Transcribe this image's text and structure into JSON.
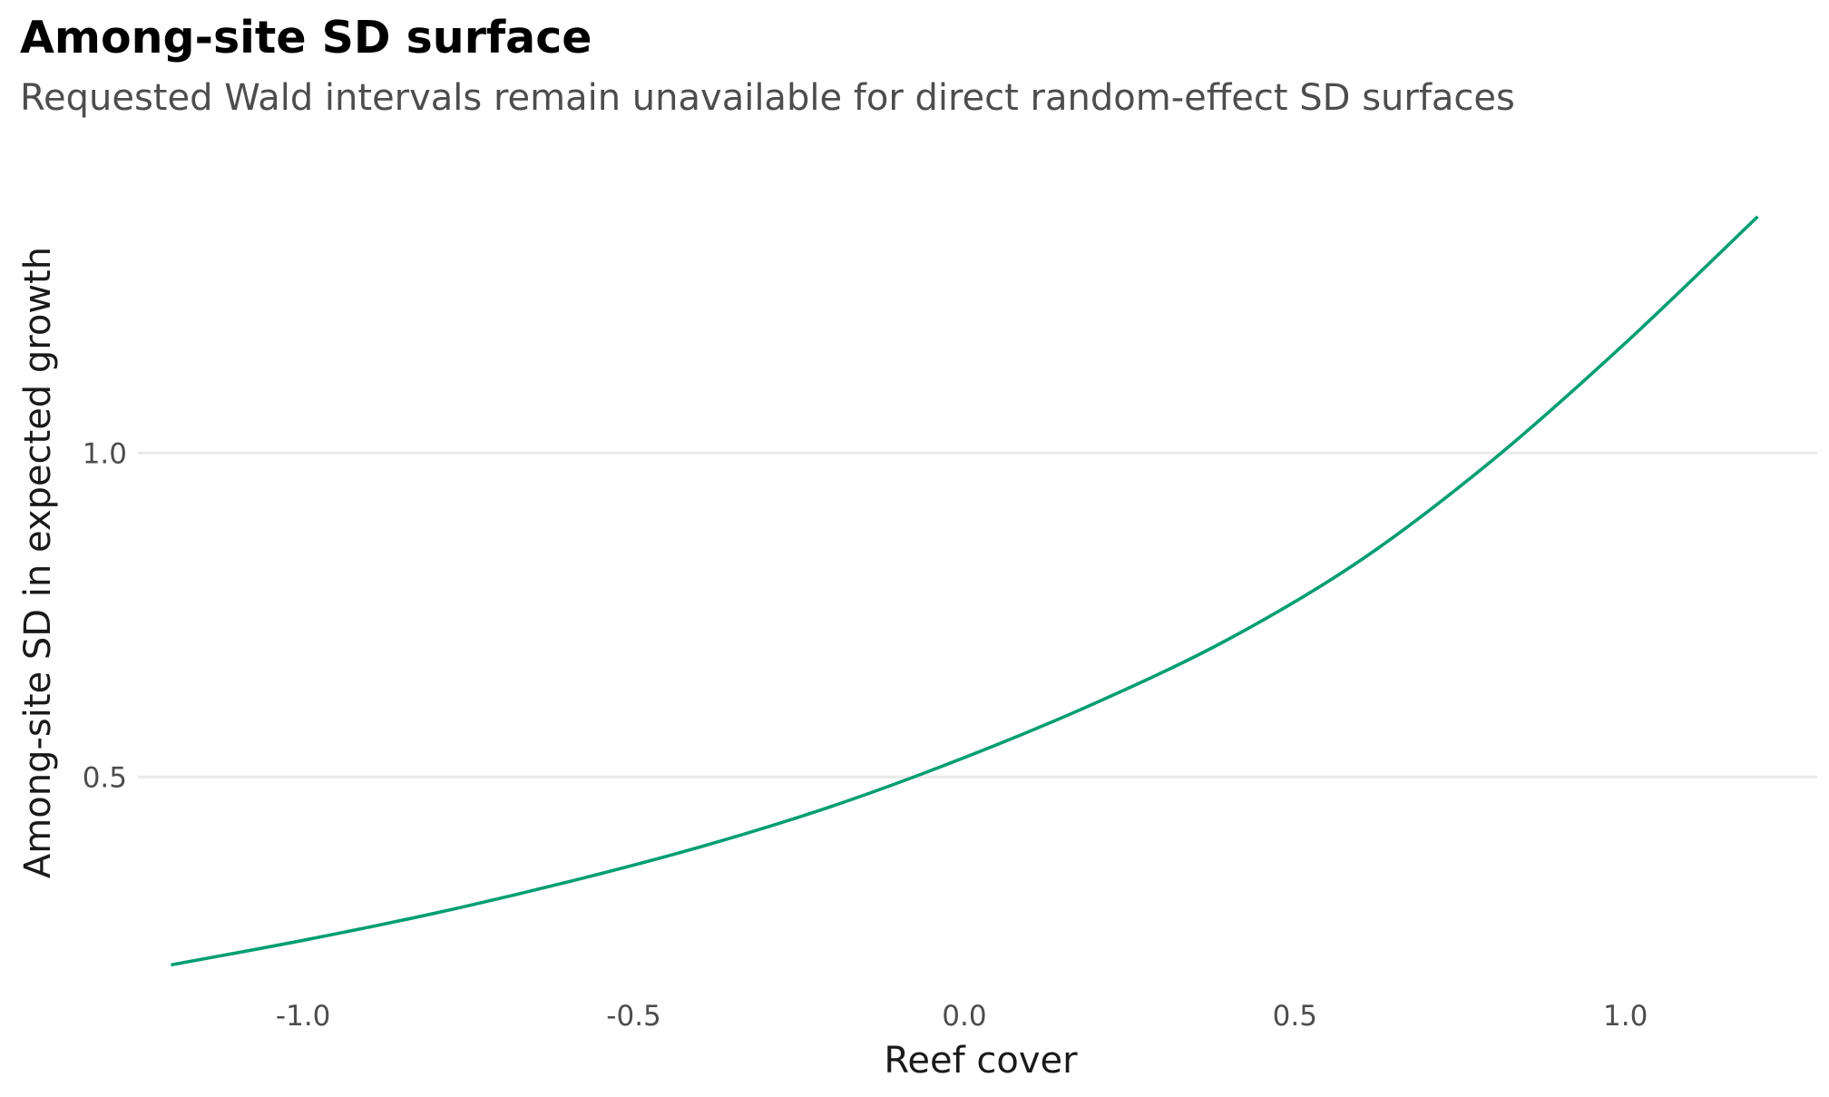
{
  "chart_data": {
    "type": "line",
    "title": "Among-site SD surface",
    "subtitle": "Requested Wald intervals remain unavailable for direct random-effect SD surfaces",
    "xlabel": "Reef cover",
    "ylabel": "Among-site SD in expected growth",
    "xlim": [
      -1.25,
      1.29
    ],
    "ylim": [
      0.17,
      1.45
    ],
    "x_ticks": [
      -1.0,
      -0.5,
      0.0,
      0.5,
      1.0
    ],
    "x_tick_labels": [
      "-1.0",
      "-0.5",
      "0.0",
      "0.5",
      "1.0"
    ],
    "y_ticks": [
      0.5,
      1.0
    ],
    "y_tick_labels": [
      "0.5",
      "1.0"
    ],
    "grid": true,
    "legend": "none",
    "colors": {
      "line": "#009e73",
      "grid": "#ebebeb"
    },
    "series": [
      {
        "x": [
          -1.2,
          -1.0,
          -0.8,
          -0.6,
          -0.4,
          -0.2,
          0.0,
          0.2,
          0.4,
          0.6,
          0.8,
          1.0,
          1.2
        ],
        "y": [
          0.21,
          0.248,
          0.29,
          0.338,
          0.392,
          0.455,
          0.53,
          0.615,
          0.713,
          0.835,
          0.99,
          1.17,
          1.365
        ]
      }
    ]
  }
}
